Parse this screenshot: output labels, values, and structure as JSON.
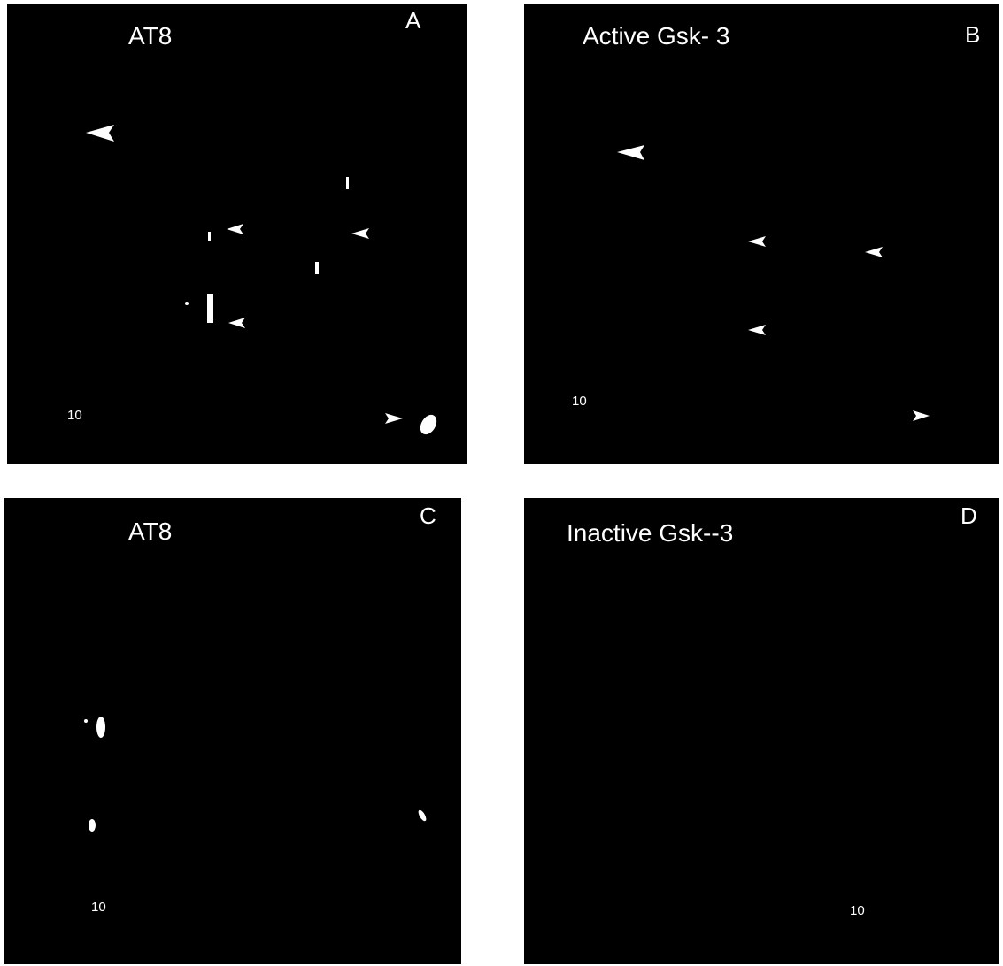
{
  "panels": [
    {
      "title": "AT8",
      "letter": "A",
      "scale": "10"
    },
    {
      "title": "Active Gsk- 3",
      "letter": "B",
      "scale": "10"
    },
    {
      "title": "AT8",
      "letter": "C",
      "scale": "10"
    },
    {
      "title": "Inactive Gsk--3",
      "letter": "D",
      "scale": "10"
    }
  ]
}
